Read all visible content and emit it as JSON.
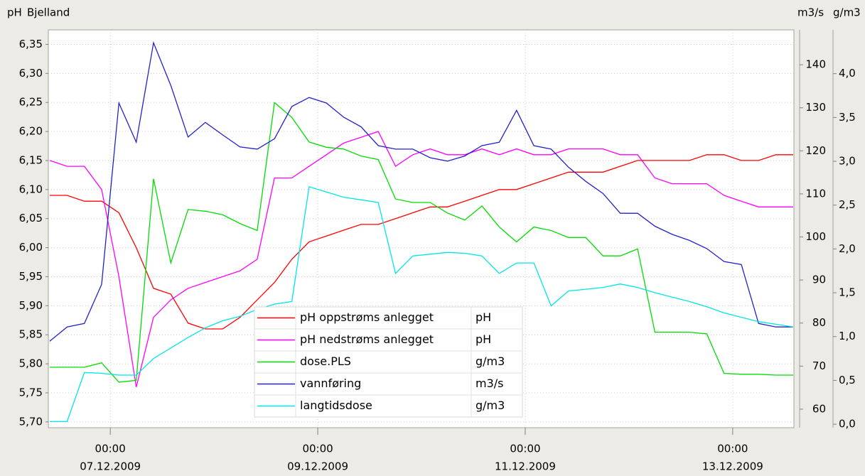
{
  "chart_data": {
    "type": "line",
    "title": "Bjelland",
    "y_label": "pH",
    "y2_label": "m3/s",
    "y3_label": "g/m3",
    "x": [
      "2009-12-06 10:00",
      "2009-12-06 14:00",
      "2009-12-06 18:00",
      "2009-12-06 22:00",
      "2009-12-07 02:00",
      "2009-12-07 06:00",
      "2009-12-07 10:00",
      "2009-12-07 14:00",
      "2009-12-07 18:00",
      "2009-12-07 22:00",
      "2009-12-08 02:00",
      "2009-12-08 06:00",
      "2009-12-08 10:00",
      "2009-12-08 14:00",
      "2009-12-08 18:00",
      "2009-12-08 22:00",
      "2009-12-09 02:00",
      "2009-12-09 06:00",
      "2009-12-09 10:00",
      "2009-12-09 14:00",
      "2009-12-09 18:00",
      "2009-12-09 22:00",
      "2009-12-10 02:00",
      "2009-12-10 06:00",
      "2009-12-10 10:00",
      "2009-12-10 14:00",
      "2009-12-10 18:00",
      "2009-12-10 22:00",
      "2009-12-11 02:00",
      "2009-12-11 06:00",
      "2009-12-11 10:00",
      "2009-12-11 14:00",
      "2009-12-11 18:00",
      "2009-12-11 22:00",
      "2009-12-12 02:00",
      "2009-12-12 06:00",
      "2009-12-12 10:00",
      "2009-12-12 14:00",
      "2009-12-12 18:00",
      "2009-12-12 22:00",
      "2009-12-13 02:00",
      "2009-12-13 06:00",
      "2009-12-13 10:00",
      "2009-12-13 14:00"
    ],
    "xlim": [
      "2009-12-06 09:40",
      "2009-12-13 14:10"
    ],
    "xticks": [
      {
        "value": "2009-12-07 00:00",
        "label": [
          "00:00",
          "07.12.2009"
        ]
      },
      {
        "value": "2009-12-09 00:00",
        "label": [
          "00:00",
          "09.12.2009"
        ]
      },
      {
        "value": "2009-12-11 00:00",
        "label": [
          "00:00",
          "11.12.2009"
        ]
      },
      {
        "value": "2009-12-13 00:00",
        "label": [
          "00:00",
          "13.12.2009"
        ]
      }
    ],
    "ylim": [
      5.69,
      6.375
    ],
    "yticks": [
      {
        "value": 5.7,
        "label": "5,70"
      },
      {
        "value": 5.75,
        "label": "5,75"
      },
      {
        "value": 5.8,
        "label": "5,80"
      },
      {
        "value": 5.85,
        "label": "5,85"
      },
      {
        "value": 5.9,
        "label": "5,90"
      },
      {
        "value": 5.95,
        "label": "5,95"
      },
      {
        "value": 6.0,
        "label": "6,00"
      },
      {
        "value": 6.05,
        "label": "6,05"
      },
      {
        "value": 6.1,
        "label": "6,10"
      },
      {
        "value": 6.15,
        "label": "6,15"
      },
      {
        "value": 6.2,
        "label": "6,20"
      },
      {
        "value": 6.25,
        "label": "6,25"
      },
      {
        "value": 6.3,
        "label": "6,30"
      },
      {
        "value": 6.35,
        "label": "6,35"
      }
    ],
    "y2lim": [
      55.7,
      148.1
    ],
    "y2ticks": [
      60,
      70,
      80,
      90,
      100,
      110,
      120,
      130,
      140
    ],
    "y3lim": [
      -0.04,
      4.5
    ],
    "y3ticks": [
      {
        "value": 0,
        "label": "0,0"
      },
      {
        "value": 0.5,
        "label": "0,5"
      },
      {
        "value": 1,
        "label": "1,0"
      },
      {
        "value": 1.5,
        "label": "1,5"
      },
      {
        "value": 2,
        "label": "2,0"
      },
      {
        "value": 2.5,
        "label": "2,5"
      },
      {
        "value": 3,
        "label": "3,0"
      },
      {
        "value": 3.5,
        "label": "3,5"
      },
      {
        "value": 4,
        "label": "4,0"
      }
    ],
    "grid": true,
    "series": [
      {
        "name": "pH oppstrøms anlegget",
        "unit": "pH",
        "color": "#ff0000",
        "axis": "y",
        "values": [
          6.09,
          6.09,
          6.08,
          6.08,
          6.06,
          6.0,
          5.93,
          5.92,
          5.87,
          5.86,
          5.86,
          5.88,
          5.91,
          5.94,
          5.98,
          6.01,
          6.02,
          6.03,
          6.04,
          6.04,
          6.05,
          6.06,
          6.07,
          6.07,
          6.08,
          6.09,
          6.1,
          6.1,
          6.11,
          6.12,
          6.13,
          6.13,
          6.13,
          6.14,
          6.15,
          6.15,
          6.15,
          6.15,
          6.16,
          6.16,
          6.15,
          6.15,
          6.16,
          6.16
        ]
      },
      {
        "name": "pH nedstrøms anlegget",
        "unit": "pH",
        "color": "#ff00ff",
        "axis": "y",
        "values": [
          6.15,
          6.14,
          6.14,
          6.1,
          5.95,
          5.76,
          5.88,
          5.91,
          5.93,
          5.94,
          5.95,
          5.96,
          5.98,
          6.12,
          6.12,
          6.14,
          6.16,
          6.18,
          6.19,
          6.2,
          6.14,
          6.16,
          6.17,
          6.16,
          6.16,
          6.17,
          6.16,
          6.17,
          6.16,
          6.16,
          6.17,
          6.17,
          6.17,
          6.16,
          6.16,
          6.12,
          6.11,
          6.11,
          6.11,
          6.09,
          6.08,
          6.07,
          6.07,
          6.07
        ]
      },
      {
        "name": "dose.PLS",
        "unit": "g/m3",
        "color": "#00dd00",
        "axis": "y3",
        "values": [
          0.65,
          0.65,
          0.65,
          0.7,
          0.48,
          0.5,
          2.8,
          1.84,
          2.45,
          2.43,
          2.39,
          2.29,
          2.21,
          3.67,
          3.5,
          3.22,
          3.16,
          3.14,
          3.06,
          3.02,
          2.57,
          2.53,
          2.53,
          2.41,
          2.33,
          2.49,
          2.25,
          2.08,
          2.25,
          2.21,
          2.13,
          2.13,
          1.92,
          1.92,
          2.0,
          1.05,
          1.05,
          1.05,
          1.03,
          0.58,
          0.57,
          0.57,
          0.56,
          0.56
        ]
      },
      {
        "name": "vannføring",
        "unit": "m3/s",
        "color": "#2222cc",
        "axis": "y2",
        "values": [
          75.8,
          79.1,
          79.9,
          89.0,
          131.1,
          122.0,
          145.1,
          135.2,
          123.2,
          126.6,
          123.7,
          120.9,
          120.4,
          122.8,
          130.3,
          132.4,
          131.1,
          127.8,
          125.6,
          121.2,
          120.4,
          120.4,
          118.4,
          117.6,
          118.8,
          121.2,
          122.0,
          129.4,
          121.2,
          120.4,
          116.2,
          112.9,
          110.1,
          105.5,
          105.5,
          102.5,
          100.6,
          99.2,
          97.3,
          94.3,
          93.6,
          79.9,
          79.1,
          79.1
        ]
      },
      {
        "name": "langtidsdose",
        "unit": "g/m3",
        "color": "#00e5e5",
        "axis": "y3",
        "values": [
          0.03,
          0.03,
          0.59,
          0.58,
          0.56,
          0.56,
          0.75,
          0.87,
          0.99,
          1.1,
          1.18,
          1.23,
          1.31,
          1.37,
          1.4,
          2.71,
          2.65,
          2.59,
          2.56,
          2.53,
          1.72,
          1.92,
          1.94,
          1.96,
          1.95,
          1.92,
          1.72,
          1.84,
          1.84,
          1.35,
          1.52,
          1.54,
          1.56,
          1.6,
          1.56,
          1.5,
          1.45,
          1.4,
          1.34,
          1.27,
          1.22,
          1.17,
          1.14,
          1.11
        ]
      }
    ]
  }
}
